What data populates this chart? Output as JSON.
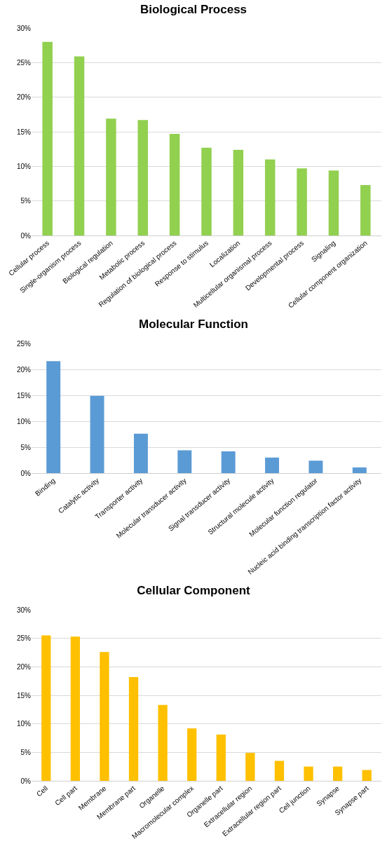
{
  "chart_data": [
    {
      "type": "bar",
      "title": "Biological Process",
      "categories": [
        "Cellular process",
        "Single-organism process",
        "Biological regulation",
        "Metabolic process",
        "Regulation of biological process",
        "Response to stimulus",
        "Localization",
        "Multicellular organismal process",
        "Developmental process",
        "Signaling",
        "Cellular component organization"
      ],
      "series": [
        {
          "color": "#92d050",
          "values": [
            28,
            25.9,
            16.9,
            16.7,
            14.7,
            12.7,
            12.4,
            11.0,
            9.7,
            9.4,
            7.3
          ]
        }
      ],
      "ylim": [
        0,
        30
      ],
      "yticks": [
        {
          "value": 0,
          "label": "0%"
        },
        {
          "value": 5,
          "label": "5%"
        },
        {
          "value": 10,
          "label": "10%"
        },
        {
          "value": 15,
          "label": "15%"
        },
        {
          "value": 20,
          "label": "20%"
        },
        {
          "value": 25,
          "label": "25%"
        },
        {
          "value": 30,
          "label": "30%"
        }
      ],
      "grid": "y"
    },
    {
      "type": "bar",
      "title": "Molecular Function",
      "categories": [
        "Binding",
        "Catalytic activity",
        "Transporter activity",
        "Molecular transducer activity",
        "Signal transducer activity",
        "Structural molecule activity",
        "Molecular function regulator",
        "Nucleic acid binding transcription factor activity"
      ],
      "series": [
        {
          "color": "#5b9bd5",
          "values": [
            21.6,
            14.9,
            7.6,
            4.4,
            4.2,
            3.0,
            2.4,
            1.1
          ]
        }
      ],
      "ylim": [
        0,
        25
      ],
      "yticks": [
        {
          "value": 0,
          "label": "0%"
        },
        {
          "value": 5,
          "label": "5%"
        },
        {
          "value": 10,
          "label": "10%"
        },
        {
          "value": 15,
          "label": "15%"
        },
        {
          "value": 20,
          "label": "20%"
        },
        {
          "value": 25,
          "label": "25%"
        }
      ],
      "grid": "y"
    },
    {
      "type": "bar",
      "title": "Cellular Component",
      "categories": [
        "Cell",
        "Cell part",
        "Membrane",
        "Membrane part",
        "Organelle",
        "Macromolecular complex",
        "Organelle part",
        "Extracellular region",
        "Extracellular region part",
        "Cell junction",
        "Synapse",
        "Synapse part"
      ],
      "series": [
        {
          "color": "#ffc000",
          "values": [
            25.5,
            25.3,
            22.6,
            18.2,
            13.3,
            9.2,
            8.1,
            4.9,
            3.5,
            2.5,
            2.5,
            1.9
          ]
        }
      ],
      "ylim": [
        0,
        30
      ],
      "yticks": [
        {
          "value": 0,
          "label": "0%"
        },
        {
          "value": 5,
          "label": "5%"
        },
        {
          "value": 10,
          "label": "10%"
        },
        {
          "value": 15,
          "label": "15%"
        },
        {
          "value": 20,
          "label": "20%"
        },
        {
          "value": 25,
          "label": "25%"
        },
        {
          "value": 30,
          "label": "30%"
        }
      ],
      "grid": "y"
    }
  ]
}
